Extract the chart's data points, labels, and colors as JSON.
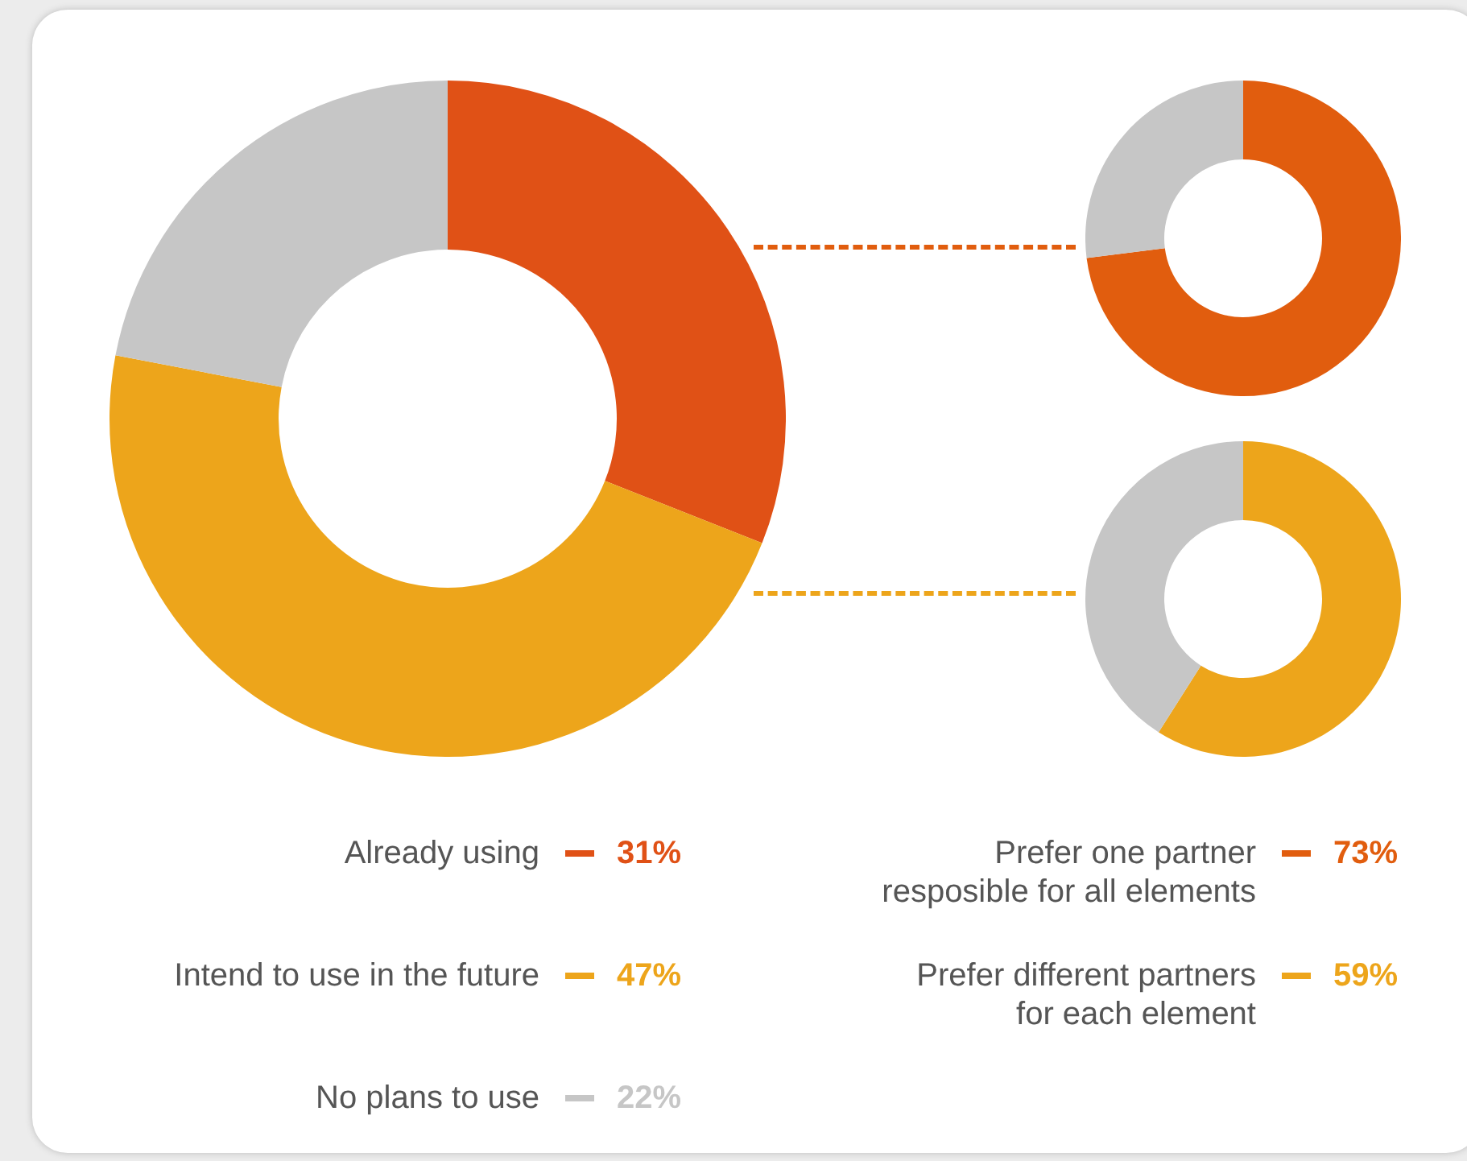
{
  "chart_data": [
    {
      "type": "donut",
      "categories": [
        "Already using",
        "Intend to use in the future",
        "No plans to use"
      ],
      "values": [
        31,
        47,
        22
      ],
      "colors": [
        "#e05116",
        "#eda51b",
        "#c6c6c6"
      ],
      "value_labels": [
        "31%",
        "47%",
        "22%"
      ],
      "legend": "bottom"
    },
    {
      "type": "donut",
      "categories": [
        "Prefer one partner\nresposible for all elements",
        null
      ],
      "values": [
        73,
        27
      ],
      "colors": [
        "#e15d0e",
        "#c6c6c6"
      ],
      "value_labels": [
        "73%",
        null
      ],
      "legend": "bottom"
    },
    {
      "type": "donut",
      "categories": [
        "Prefer different partners\nfor each element",
        null
      ],
      "values": [
        59,
        41
      ],
      "colors": [
        "#eda51b",
        "#c6c6c6"
      ],
      "value_labels": [
        "59%",
        null
      ],
      "legend": "bottom"
    }
  ]
}
